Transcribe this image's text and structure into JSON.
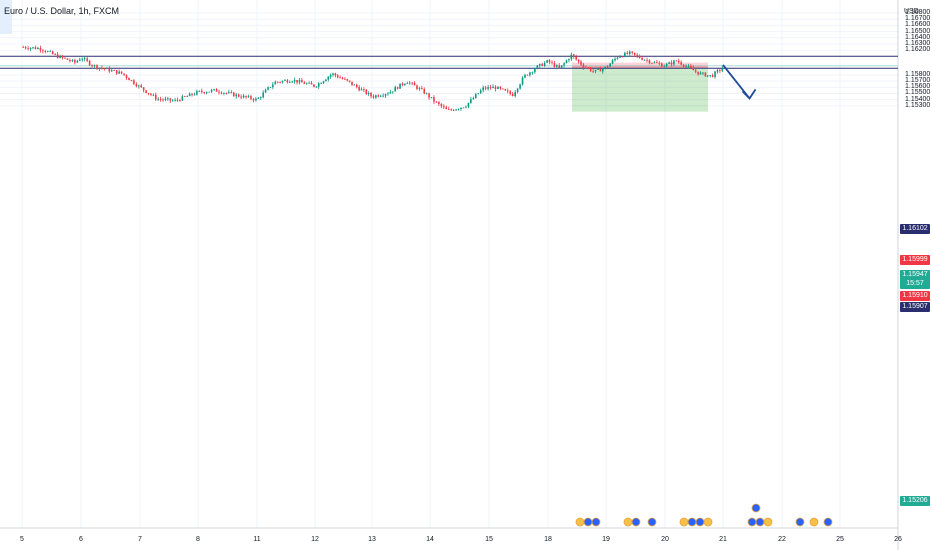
{
  "header": {
    "title": "Euro / U.S. Dollar, 1h, FXCM",
    "currency": "USD"
  },
  "price_tags": [
    {
      "label": "1.16102",
      "color": "#2a2e6e"
    },
    {
      "label": "1.15999",
      "color": "#f23645"
    },
    {
      "label": "1.15947",
      "color": "#22ab94"
    },
    {
      "label": "15:57",
      "color": "#22ab94"
    },
    {
      "label": "1.15910",
      "color": "#f23645"
    },
    {
      "label": "1.15907",
      "color": "#2a2e6e"
    },
    {
      "label": "1.15206",
      "color": "#22ab94"
    }
  ],
  "chart_data": {
    "type": "candlestick",
    "title": "Euro / U.S. Dollar, 1h, FXCM",
    "y_unit": "USD",
    "ylim": [
      1.1518,
      1.1685
    ],
    "y_ticks": [
      "1.16800",
      "1.16700",
      "1.16600",
      "1.16500",
      "1.16400",
      "1.16300",
      "1.16200",
      "1.15800",
      "1.15700",
      "1.15600",
      "1.15500",
      "1.15400",
      "1.15300"
    ],
    "x_ticks": [
      "5",
      "6",
      "7",
      "8",
      "11",
      "12",
      "13",
      "14",
      "15",
      "18",
      "19",
      "20",
      "21",
      "22",
      "25",
      "26"
    ],
    "horizontal_lines": [
      1.16102,
      1.15907
    ],
    "position": {
      "side": "short",
      "entry": 1.1591,
      "stop": 1.15999,
      "target": 1.15206
    },
    "current_price": 1.15947,
    "price_path": [
      [
        0,
        1.1625
      ],
      [
        0.3,
        1.1623
      ],
      [
        0.6,
        1.161
      ],
      [
        0.9,
        1.16
      ],
      [
        1.0,
        1.1608
      ],
      [
        1.2,
        1.1595
      ],
      [
        1.4,
        1.159
      ],
      [
        1.7,
        1.1582
      ],
      [
        2.0,
        1.156
      ],
      [
        2.3,
        1.1541
      ],
      [
        2.6,
        1.1538
      ],
      [
        3.0,
        1.1552
      ],
      [
        3.3,
        1.1555
      ],
      [
        3.6,
        1.1548
      ],
      [
        4.0,
        1.154
      ],
      [
        4.3,
        1.1568
      ],
      [
        4.6,
        1.1572
      ],
      [
        5.0,
        1.1562
      ],
      [
        5.3,
        1.1582
      ],
      [
        5.6,
        1.1568
      ],
      [
        6.0,
        1.1545
      ],
      [
        6.3,
        1.1552
      ],
      [
        6.6,
        1.157
      ],
      [
        6.9,
        1.1552
      ],
      [
        7.1,
        1.1535
      ],
      [
        7.3,
        1.1522
      ],
      [
        7.6,
        1.153
      ],
      [
        7.9,
        1.1558
      ],
      [
        8.1,
        1.156
      ],
      [
        8.4,
        1.1548
      ],
      [
        8.6,
        1.1578
      ],
      [
        8.8,
        1.1592
      ],
      [
        9.0,
        1.1602
      ],
      [
        9.2,
        1.159
      ],
      [
        9.4,
        1.1612
      ],
      [
        9.6,
        1.1595
      ],
      [
        9.8,
        1.1585
      ],
      [
        10.0,
        1.1592
      ],
      [
        10.2,
        1.161
      ],
      [
        10.4,
        1.1615
      ],
      [
        10.6,
        1.1607
      ],
      [
        10.8,
        1.16
      ],
      [
        11.0,
        1.1595
      ],
      [
        11.2,
        1.1603
      ],
      [
        11.4,
        1.1592
      ],
      [
        11.6,
        1.1582
      ],
      [
        11.8,
        1.1578
      ],
      [
        12.0,
        1.1592
      ]
    ],
    "projection": {
      "from": [
        12.0,
        1.1596
      ],
      "to": [
        12.45,
        1.1542
      ]
    }
  }
}
